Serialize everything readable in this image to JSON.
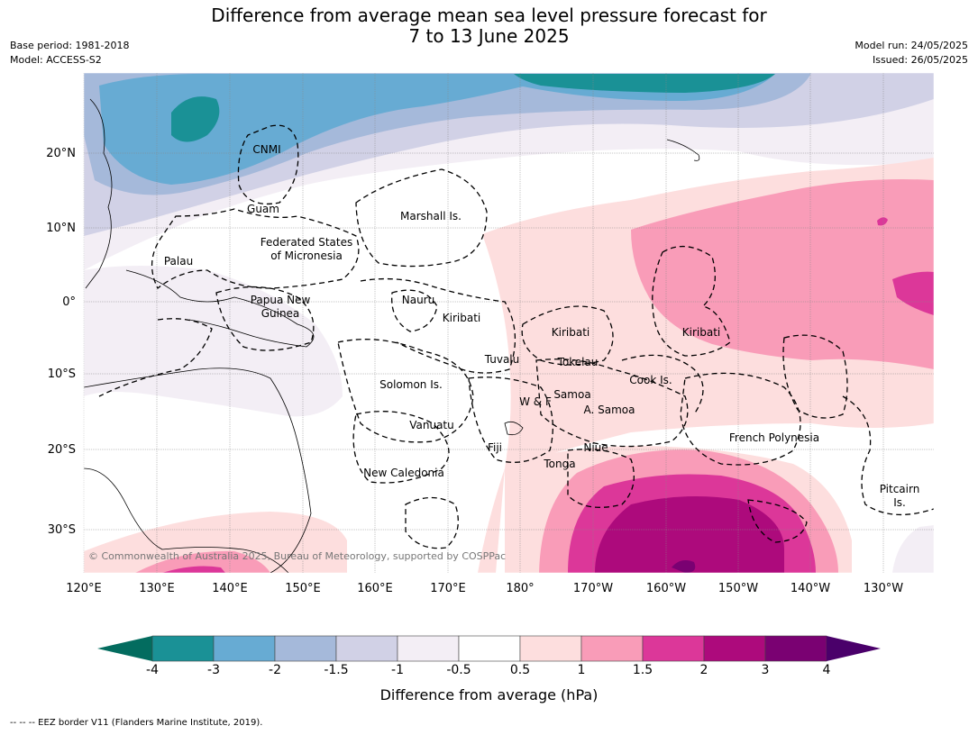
{
  "title_line1": "Difference from average mean sea level pressure forecast for",
  "title_line2": "7 to 13 June 2025",
  "base_period": "Base period: 1981-2018",
  "model": "Model: ACCESS-S2",
  "model_run": "Model run: 24/05/2025",
  "issued": "Issued: 26/05/2025",
  "copyright": "© Commonwealth of Australia 2025, Bureau of Meteorology, supported by COSPPac",
  "lon_ticks": [
    "120°E",
    "130°E",
    "140°E",
    "150°E",
    "160°E",
    "170°E",
    "180°",
    "170°W",
    "160°W",
    "150°W",
    "140°W",
    "130°W"
  ],
  "lat_ticks": [
    "20°N",
    "10°N",
    "0°",
    "10°S",
    "20°S",
    "30°S"
  ],
  "region_labels": [
    "CNMI",
    "Guam",
    "Marshall Is.",
    "Federated States",
    "of Micronesia",
    "Palau",
    "Papua New",
    "Guinea",
    "Nauru",
    "Kiribati",
    "Kiribati",
    "Kiribati",
    "Tuvalu",
    "Tokelau",
    "Solomon Is.",
    "W & F",
    "Samoa",
    "A. Samoa",
    "Cook Is.",
    "Vanuatu",
    "Fiji",
    "Niue",
    "Tonga",
    "New Caledonia",
    "French Polynesia",
    "Pitcairn",
    "Is."
  ],
  "colorbar": {
    "ticks": [
      "-4",
      "-3",
      "-2",
      "-1.5",
      "-1",
      "-0.5",
      "0.5",
      "1",
      "1.5",
      "2",
      "3",
      "4"
    ],
    "colors": [
      "#1a9196",
      "#67abd3",
      "#a5b9da",
      "#d1d1e6",
      "#f3eef5",
      "#ffffff",
      "#fddede",
      "#f99cb8",
      "#dc3799",
      "#ad0a7c",
      "#7a0172"
    ],
    "under_color": "#036c5f",
    "over_color": "#4a006a",
    "label": "Difference from average (hPa)"
  },
  "footnote": "--  --  -- EEZ border V11 (Flanders Marine Institute, 2019)."
}
